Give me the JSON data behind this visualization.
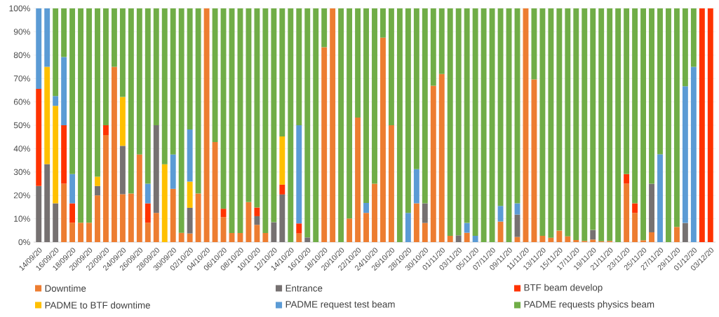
{
  "chart_data": {
    "type": "bar",
    "stacked": true,
    "legend": "bottom",
    "grid": "y",
    "categories": [
      "14/09/20",
      null,
      "16/09/20",
      null,
      "18/09/20",
      null,
      "20/09/20",
      null,
      "22/09/20",
      null,
      "24/09/20",
      null,
      "26/09/20",
      null,
      "28/09/20",
      null,
      "30/09/20",
      null,
      "02/10/20",
      null,
      "04/10/20",
      null,
      "06/10/20",
      null,
      "08/10/20",
      null,
      "10/10/20",
      null,
      "12/10/20",
      null,
      "14/10/20",
      null,
      "16/10/20",
      null,
      "18/10/20",
      null,
      "20/10/20",
      null,
      "22/10/20",
      null,
      "24/10/20",
      null,
      "26/10/20",
      null,
      "28/10/20",
      null,
      "30/10/20",
      null,
      "01/11/20",
      null,
      "03/11/20",
      null,
      "05/11/20",
      null,
      "07/11/20",
      null,
      "09/11/20",
      null,
      "11/11/20",
      null,
      "13/11/20",
      null,
      "15/11/20",
      null,
      "17/11/20",
      null,
      "19/11/20",
      null,
      "21/11/20",
      null,
      "23/11/20",
      null,
      "25/11/20",
      null,
      "27/11/20",
      null,
      "29/11/20",
      null,
      "01/12/20",
      null,
      "03/12/20"
    ],
    "ylim": [
      0,
      100
    ],
    "yticks": [
      {
        "value": 0,
        "label": "0%"
      },
      {
        "value": 10,
        "label": "10%"
      },
      {
        "value": 20,
        "label": "20%"
      },
      {
        "value": 30,
        "label": "30%"
      },
      {
        "value": 40,
        "label": "40%"
      },
      {
        "value": 50,
        "label": "50%"
      },
      {
        "value": 60,
        "label": "60%"
      },
      {
        "value": 70,
        "label": "70%"
      },
      {
        "value": 80,
        "label": "80%"
      },
      {
        "value": 90,
        "label": "90%"
      },
      {
        "value": 100,
        "label": "100%"
      }
    ],
    "series": [
      {
        "name": "Downtime",
        "color": "#ed7d31",
        "values": [
          null,
          null,
          null,
          25,
          8.3,
          8.3,
          8.3,
          20,
          45.8,
          75,
          20.5,
          20.8,
          37.5,
          8.3,
          12.5,
          null,
          22.8,
          4,
          3.7,
          20.8,
          100,
          42.8,
          10.7,
          3.9,
          3.9,
          17.1,
          7.4,
          3.9,
          null,
          null,
          null,
          3.7,
          null,
          null,
          83.4,
          100,
          null,
          10.1,
          53.3,
          12.5,
          25,
          87.5,
          50,
          null,
          null,
          16.6,
          8.2,
          66.9,
          71.9,
          2.7,
          null,
          4,
          null,
          null,
          null,
          8.8,
          null,
          2.2,
          100,
          69.6,
          2.7,
          1.9,
          4.9,
          2.5,
          0.9,
          0.5,
          1.1,
          0.4,
          0.5,
          null,
          25,
          12.5,
          0.8,
          4.2,
          null,
          null,
          6.5,
          null,
          null,
          null,
          null
        ]
      },
      {
        "name": "Entrance",
        "color": "#767171",
        "values": [
          24,
          33.4,
          16.6,
          null,
          null,
          null,
          null,
          4,
          null,
          null,
          20.7,
          null,
          null,
          null,
          37.5,
          null,
          null,
          null,
          11,
          null,
          null,
          null,
          null,
          null,
          null,
          null,
          3.7,
          null,
          8.5,
          20.4,
          null,
          null,
          2,
          null,
          null,
          null,
          null,
          null,
          null,
          null,
          null,
          null,
          null,
          null,
          null,
          null,
          8.4,
          null,
          null,
          null,
          2.9,
          null,
          null,
          null,
          null,
          null,
          null,
          9.6,
          null,
          null,
          null,
          null,
          null,
          null,
          null,
          null,
          4.1,
          null,
          null,
          null,
          null,
          null,
          null,
          20.8,
          null,
          null,
          null,
          8.2,
          null,
          null,
          null
        ]
      },
      {
        "name": "BTF beam develop",
        "color": "#ff3300",
        "values": [
          41.6,
          null,
          null,
          25,
          8.3,
          null,
          null,
          null,
          4.2,
          null,
          null,
          null,
          null,
          8.3,
          null,
          null,
          null,
          null,
          null,
          null,
          null,
          null,
          3.6,
          null,
          null,
          null,
          3.7,
          null,
          null,
          4.2,
          null,
          4.3,
          null,
          null,
          null,
          null,
          null,
          null,
          null,
          null,
          null,
          null,
          null,
          null,
          null,
          null,
          null,
          null,
          null,
          null,
          null,
          null,
          null,
          null,
          null,
          null,
          null,
          null,
          null,
          null,
          null,
          null,
          null,
          null,
          null,
          null,
          null,
          null,
          null,
          null,
          4.1,
          4.1,
          null,
          null,
          null,
          null,
          null,
          null,
          null,
          100,
          100
        ]
      },
      {
        "name": "PADME to BTF downtime",
        "color": "#ffc000",
        "values": [
          null,
          41.6,
          41.7,
          null,
          null,
          null,
          null,
          4,
          null,
          null,
          20.9,
          null,
          null,
          null,
          null,
          33.3,
          null,
          null,
          11.2,
          null,
          null,
          null,
          null,
          null,
          null,
          null,
          null,
          null,
          null,
          20.6,
          null,
          null,
          null,
          null,
          null,
          null,
          null,
          null,
          null,
          null,
          null,
          null,
          null,
          null,
          null,
          null,
          null,
          null,
          null,
          null,
          null,
          null,
          null,
          null,
          null,
          null,
          null,
          null,
          null,
          null,
          null,
          null,
          null,
          null,
          null,
          null,
          null,
          null,
          null,
          null,
          null,
          null,
          null,
          null,
          null,
          null,
          null,
          null,
          null,
          null,
          null
        ]
      },
      {
        "name": "PADME request test beam",
        "color": "#5b9bd5",
        "values": [
          34.4,
          25,
          4.2,
          29.2,
          12.5,
          null,
          null,
          null,
          null,
          null,
          null,
          null,
          null,
          8.4,
          null,
          null,
          14.7,
          null,
          22.3,
          null,
          null,
          null,
          null,
          null,
          null,
          null,
          null,
          null,
          null,
          null,
          null,
          42,
          null,
          null,
          null,
          null,
          null,
          null,
          null,
          4.3,
          null,
          null,
          null,
          null,
          12.5,
          14.6,
          null,
          null,
          null,
          null,
          null,
          4.2,
          2.7,
          null,
          null,
          6.7,
          null,
          4.8,
          null,
          null,
          null,
          null,
          null,
          null,
          null,
          null,
          null,
          null,
          null,
          null,
          null,
          null,
          null,
          null,
          37.6,
          null,
          null,
          58.5,
          75,
          null,
          null
        ]
      },
      {
        "name": "PADME requests physics beam",
        "color": "#70ad47",
        "values": [
          null,
          null,
          37.5,
          20.8,
          70.9,
          91.7,
          91.7,
          72,
          50,
          25,
          37.9,
          79.2,
          62.5,
          75,
          50,
          66.7,
          62.5,
          96,
          51.8,
          79.2,
          null,
          57.2,
          85.7,
          96.1,
          96.1,
          82.9,
          85.2,
          96.1,
          91.5,
          54.8,
          100,
          50,
          98,
          100,
          16.6,
          null,
          100,
          89.9,
          46.7,
          83.2,
          75,
          12.5,
          50,
          100,
          87.5,
          68.8,
          83.4,
          33.1,
          28.1,
          97.3,
          97.1,
          91.8,
          97.3,
          100,
          100,
          84.5,
          100,
          83.4,
          null,
          30.4,
          97.3,
          98.1,
          95.1,
          97.5,
          99.1,
          99.5,
          94.8,
          99.6,
          99.5,
          100,
          70.9,
          83.4,
          99.2,
          75,
          62.4,
          100,
          93.5,
          33.3,
          25,
          null,
          null
        ]
      }
    ]
  }
}
